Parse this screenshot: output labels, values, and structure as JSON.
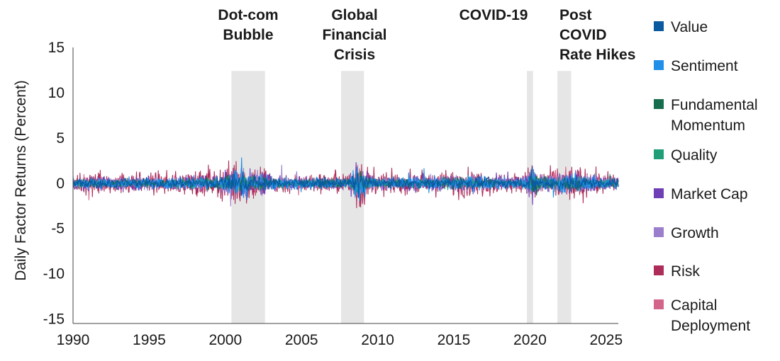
{
  "chart_data": {
    "type": "line",
    "title": "",
    "xlabel": "",
    "ylabel": "Daily Factor Returns (Percent)",
    "xlim": [
      1990,
      2025.8
    ],
    "ylim": [
      -15.5,
      15
    ],
    "x_ticks": [
      1990,
      1995,
      2000,
      2005,
      2010,
      2015,
      2020,
      2025
    ],
    "y_ticks": [
      15,
      10,
      5,
      0,
      -5,
      -10,
      -15
    ],
    "grid": false,
    "legend_position": "right",
    "series": [
      {
        "name": "Value",
        "color": "#0a5aa0"
      },
      {
        "name": "Sentiment",
        "color": "#1f8fe8"
      },
      {
        "name": "Fundamental Momentum",
        "color": "#176e4e"
      },
      {
        "name": "Quality",
        "color": "#1f9e78"
      },
      {
        "name": "Market Cap",
        "color": "#6f3fb5"
      },
      {
        "name": "Growth",
        "color": "#9b7fcc"
      },
      {
        "name": "Risk",
        "color": "#ad2c5a"
      },
      {
        "name": "Capital Deployment",
        "color": "#d4658a"
      }
    ],
    "shaded_periods": [
      {
        "label_lines": [
          "Dot-com",
          "Bubble"
        ],
        "start": 2000.4,
        "end": 2002.6
      },
      {
        "label_lines": [
          "Global",
          "Financial",
          "Crisis"
        ],
        "start": 2007.6,
        "end": 2009.1
      },
      {
        "label_lines": [
          "COVID-19"
        ],
        "start": 2019.8,
        "end": 2020.2
      },
      {
        "label_lines": [
          "Post",
          "COVID",
          "Rate Hikes"
        ],
        "start": 2021.8,
        "end": 2022.7
      }
    ],
    "shade_color": "#e6e6e6"
  }
}
